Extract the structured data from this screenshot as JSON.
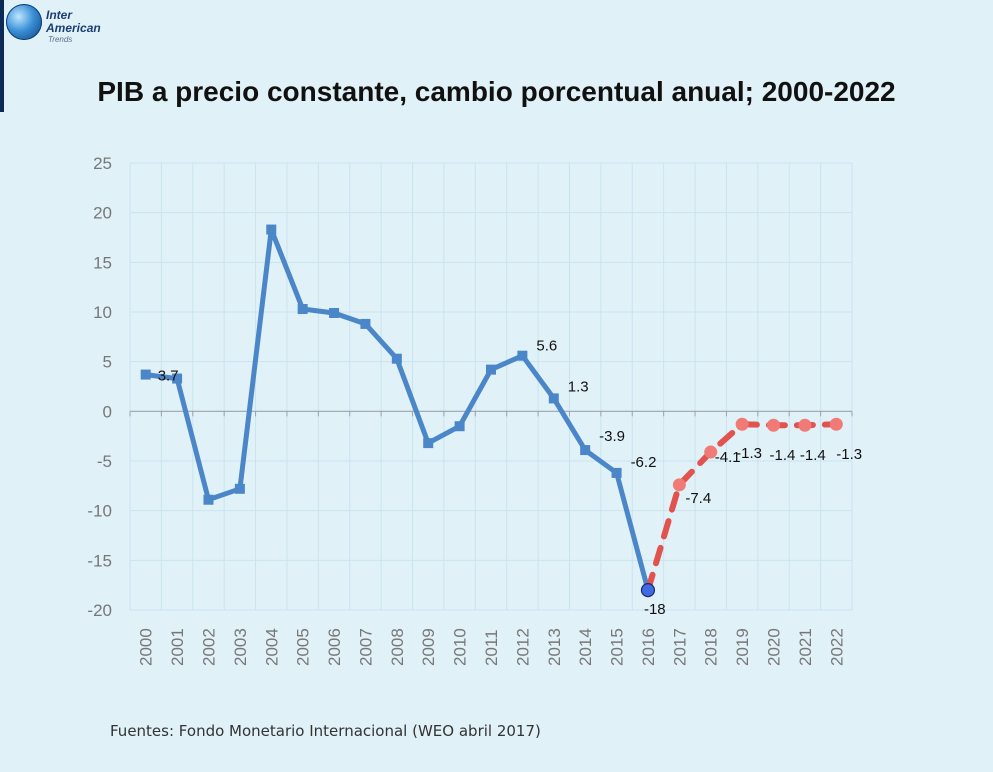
{
  "logo": {
    "line1": "Inter",
    "line2": "American",
    "line3": "Trends"
  },
  "title": "PIB a precio constante, cambio porcentual anual; 2000-2022",
  "source": "Fuentes: Fondo Monetario Internacional (WEO abril 2017)",
  "chart_data": {
    "type": "line",
    "title": "PIB a precio constante, cambio porcentual anual; 2000-2022",
    "xlabel": "",
    "ylabel": "",
    "ylim": [
      -20,
      25
    ],
    "yticks": [
      25,
      20,
      15,
      10,
      5,
      0,
      -5,
      -10,
      -15,
      -20
    ],
    "grid": true,
    "categories": [
      "2000",
      "2001",
      "2002",
      "2003",
      "2004",
      "2005",
      "2006",
      "2007",
      "2008",
      "2009",
      "2010",
      "2011",
      "2012",
      "2013",
      "2014",
      "2015",
      "2016",
      "2017",
      "2018",
      "2019",
      "2020",
      "2021",
      "2022"
    ],
    "series": [
      {
        "style": "solid-square",
        "color": "#4a86c8",
        "values": [
          3.7,
          3.3,
          -8.9,
          -7.8,
          18.3,
          10.3,
          9.9,
          8.8,
          5.3,
          -3.2,
          -1.5,
          4.2,
          5.6,
          1.3,
          -3.9,
          -6.2,
          -18,
          null,
          null,
          null,
          null,
          null,
          null
        ]
      },
      {
        "style": "dashed-circle",
        "color": "#e0534f",
        "values": [
          null,
          null,
          null,
          null,
          null,
          null,
          null,
          null,
          null,
          null,
          null,
          null,
          null,
          null,
          null,
          null,
          -18,
          -7.4,
          -4.1,
          -1.3,
          -1.4,
          -1.4,
          -1.3
        ]
      }
    ],
    "data_labels": [
      {
        "category": "2000",
        "text": "3.7"
      },
      {
        "category": "2012",
        "text": "5.6"
      },
      {
        "category": "2013",
        "text": "1.3"
      },
      {
        "category": "2014",
        "text": "-3.9"
      },
      {
        "category": "2015",
        "text": "-6.2"
      },
      {
        "category": "2016",
        "text": "-18"
      },
      {
        "category": "2017",
        "text": "-7.4"
      },
      {
        "category": "2018",
        "text": "-4.1"
      },
      {
        "category": "2019",
        "text": "-1.3"
      },
      {
        "category": "2020",
        "text": "-1.4"
      },
      {
        "category": "2021",
        "text": "-1.4"
      },
      {
        "category": "2022",
        "text": "-1.3"
      }
    ],
    "highlight_point": {
      "category": "2016",
      "color": "#4169e1"
    }
  }
}
